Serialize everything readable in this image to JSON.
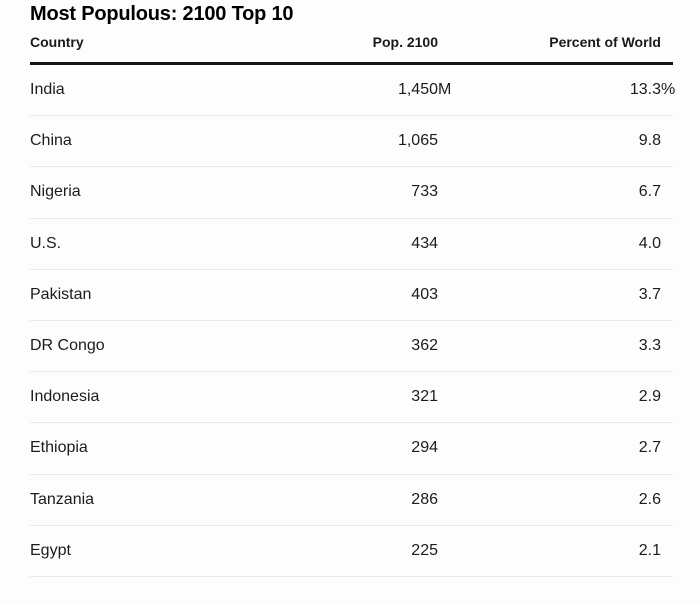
{
  "title": "Most Populous: 2100 Top 10",
  "table": {
    "columns": [
      "Country",
      "Pop. 2100",
      "Percent of World"
    ],
    "rows": [
      {
        "country": "India",
        "pop": "1,450",
        "pop_suffix": "M",
        "pct": "13.3",
        "pct_suffix": "%"
      },
      {
        "country": "China",
        "pop": "1,065",
        "pop_suffix": "",
        "pct": "9.8",
        "pct_suffix": ""
      },
      {
        "country": "Nigeria",
        "pop": "733",
        "pop_suffix": "",
        "pct": "6.7",
        "pct_suffix": ""
      },
      {
        "country": "U.S.",
        "pop": "434",
        "pop_suffix": "",
        "pct": "4.0",
        "pct_suffix": ""
      },
      {
        "country": "Pakistan",
        "pop": "403",
        "pop_suffix": "",
        "pct": "3.7",
        "pct_suffix": ""
      },
      {
        "country": "DR Congo",
        "pop": "362",
        "pop_suffix": "",
        "pct": "3.3",
        "pct_suffix": ""
      },
      {
        "country": "Indonesia",
        "pop": "321",
        "pop_suffix": "",
        "pct": "2.9",
        "pct_suffix": ""
      },
      {
        "country": "Ethiopia",
        "pop": "294",
        "pop_suffix": "",
        "pct": "2.7",
        "pct_suffix": ""
      },
      {
        "country": "Tanzania",
        "pop": "286",
        "pop_suffix": "",
        "pct": "2.6",
        "pct_suffix": ""
      },
      {
        "country": "Egypt",
        "pop": "225",
        "pop_suffix": "",
        "pct": "2.1",
        "pct_suffix": ""
      }
    ]
  },
  "chart_data": {
    "type": "table",
    "title": "Most Populous: 2100 Top 10",
    "columns": [
      "Country",
      "Pop. 2100",
      "Percent of World"
    ],
    "rows": [
      [
        "India",
        "1,450M",
        "13.3%"
      ],
      [
        "China",
        "1,065",
        "9.8"
      ],
      [
        "Nigeria",
        "733",
        "6.7"
      ],
      [
        "U.S.",
        "434",
        "4.0"
      ],
      [
        "Pakistan",
        "403",
        "3.7"
      ],
      [
        "DR Congo",
        "362",
        "3.3"
      ],
      [
        "Indonesia",
        "321",
        "2.9"
      ],
      [
        "Ethiopia",
        "294",
        "2.7"
      ],
      [
        "Tanzania",
        "286",
        "2.6"
      ],
      [
        "Egypt",
        "225",
        "2.1"
      ]
    ],
    "pop_2100_millions": [
      1450,
      1065,
      733,
      434,
      403,
      362,
      321,
      294,
      286,
      225
    ],
    "percent_of_world": [
      13.3,
      9.8,
      6.7,
      4.0,
      3.7,
      3.3,
      2.9,
      2.7,
      2.6,
      2.1
    ]
  },
  "colors": {
    "background": "#fdfdfd",
    "title_text": "#000000",
    "body_text": "#1c1c1c",
    "header_rule": "#141414",
    "row_divider": "#e9e9eb"
  }
}
